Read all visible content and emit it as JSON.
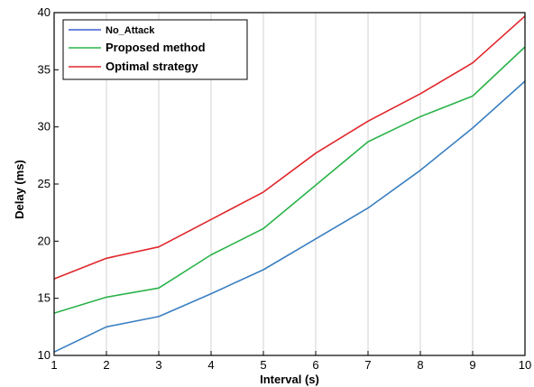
{
  "chart_data": {
    "type": "line",
    "xlabel": "Interval (s)",
    "ylabel": "Delay (ms)",
    "x": [
      1,
      2,
      3,
      4,
      5,
      6,
      7,
      8,
      9,
      10
    ],
    "xlim": [
      1,
      10
    ],
    "ylim": [
      10,
      40
    ],
    "xticks": [
      1,
      2,
      3,
      4,
      5,
      6,
      7,
      8,
      9,
      10
    ],
    "yticks": [
      10,
      15,
      20,
      25,
      30,
      35,
      40
    ],
    "grid": "vertical",
    "legend_position": "top-left",
    "series": [
      {
        "name": "No_Attack",
        "color": "#3a7fc1",
        "legend_color": "#3f5fd6",
        "values": [
          10.3,
          12.5,
          13.4,
          15.4,
          17.5,
          20.2,
          22.9,
          26.2,
          29.9,
          34.0
        ]
      },
      {
        "name": "Proposed method",
        "color": "#2bb34a",
        "legend_color": "#2bb34a",
        "values": [
          13.7,
          15.1,
          15.9,
          18.8,
          21.1,
          24.9,
          28.7,
          30.9,
          32.7,
          37.0
        ]
      },
      {
        "name": "Optimal strategy",
        "color": "#e0262b",
        "legend_color": "#e0262b",
        "values": [
          16.7,
          18.5,
          19.5,
          21.9,
          24.3,
          27.7,
          30.5,
          32.9,
          35.6,
          39.7
        ]
      }
    ]
  }
}
